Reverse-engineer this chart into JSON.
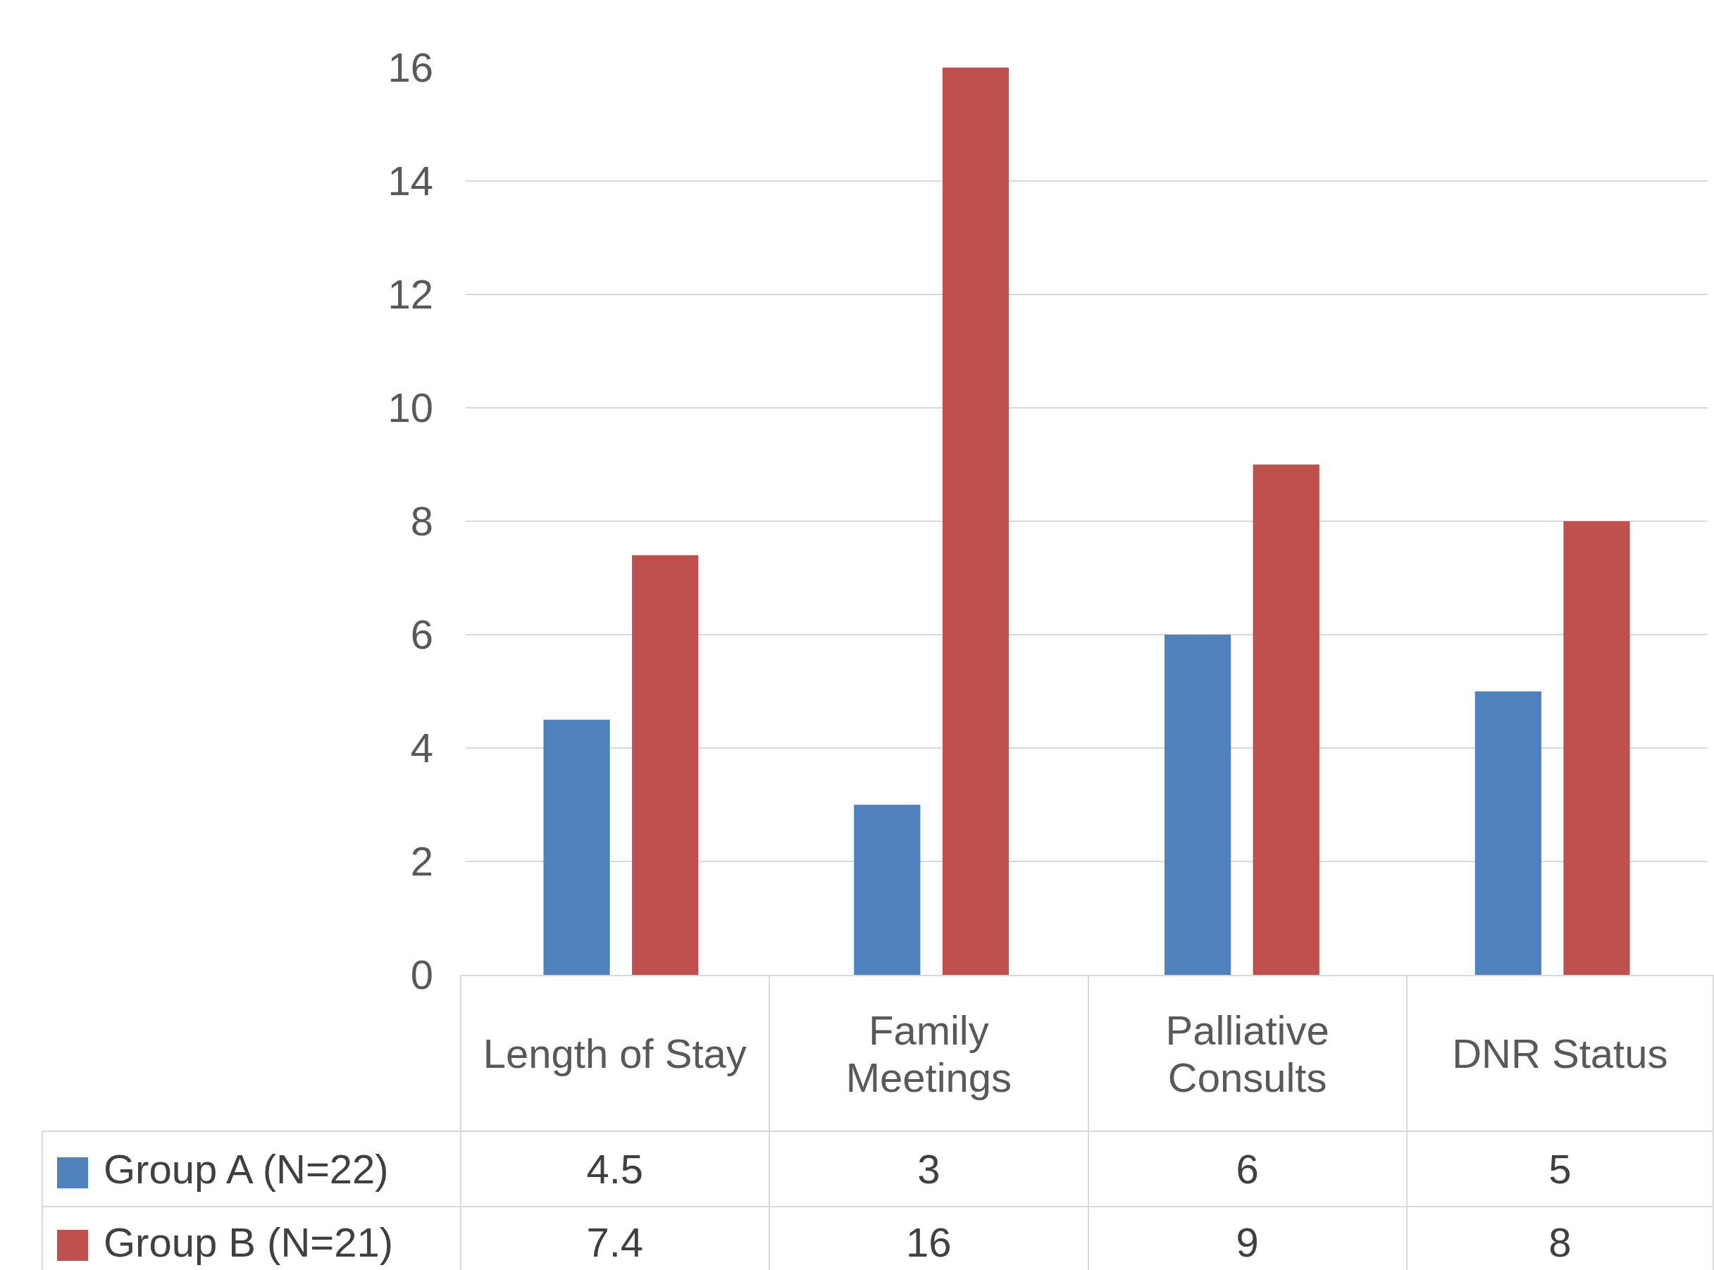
{
  "chart_data": {
    "type": "bar",
    "categories": [
      "Length of Stay",
      "Family Meetings",
      "Palliative Consults",
      "DNR Status"
    ],
    "series": [
      {
        "name": "Group A (N=22)",
        "color": "#4f81bd",
        "values": [
          4.5,
          3,
          6,
          5
        ]
      },
      {
        "name": "Group B (N=21)",
        "color": "#c0504d",
        "values": [
          7.4,
          16,
          9,
          8
        ]
      }
    ],
    "ylim": [
      0,
      16
    ],
    "yticks": [
      0,
      2,
      4,
      6,
      8,
      10,
      12,
      14,
      16
    ],
    "grid": "y",
    "data_labels": true,
    "legend": "bottom"
  }
}
